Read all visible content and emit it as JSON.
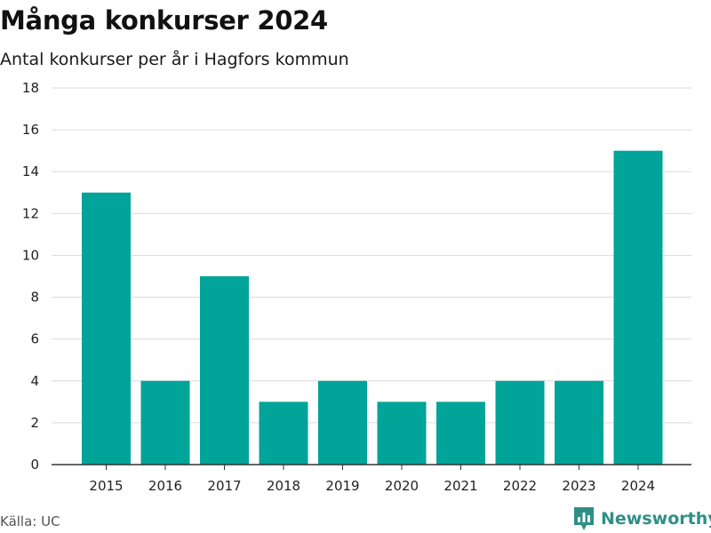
{
  "title": "Många konkurser 2024",
  "subtitle": "Antal konkurser per år i Hagfors kommun",
  "source": "Källa: UC",
  "brand": {
    "name": "Newsworthy",
    "icon": "newsworthy-logo-icon",
    "color": "#2f8f87"
  },
  "chart_data": {
    "type": "bar",
    "categories": [
      "2015",
      "2016",
      "2017",
      "2018",
      "2019",
      "2020",
      "2021",
      "2022",
      "2023",
      "2024"
    ],
    "values": [
      13,
      4,
      9,
      3,
      4,
      3,
      3,
      4,
      4,
      15
    ],
    "ylim": [
      0,
      18
    ],
    "yticks": [
      0,
      2,
      4,
      6,
      8,
      10,
      12,
      14,
      16,
      18
    ],
    "xlabel": "",
    "ylabel": "",
    "grid": true,
    "legend": "none",
    "bar_color": "#00a499"
  }
}
